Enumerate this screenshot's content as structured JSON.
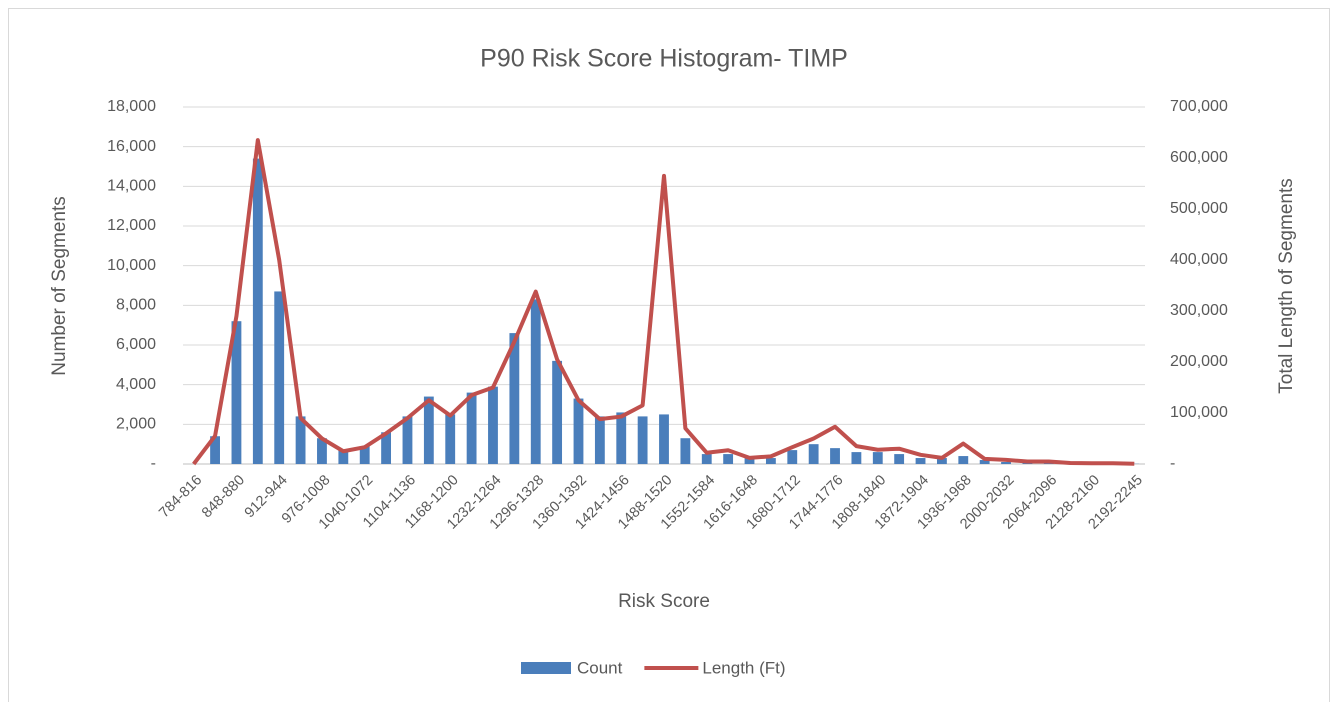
{
  "chart_data": {
    "type": "bar",
    "title": "P90 Risk Score Histogram- TIMP",
    "x_label": "Risk Score",
    "y_label": "Number of Segments",
    "y2_label": "Total Length of Segments",
    "categories": [
      "784-816",
      null,
      "848-880",
      null,
      "912-944",
      null,
      "976-1008",
      null,
      "1040-1072",
      null,
      "1104-1136",
      null,
      "1168-1200",
      null,
      "1232-1264",
      null,
      "1296-1328",
      null,
      "1360-1392",
      null,
      "1424-1456",
      null,
      "1488-1520",
      null,
      "1552-1584",
      null,
      "1616-1648",
      null,
      "1680-1712",
      null,
      "1744-1776",
      null,
      "1808-1840",
      null,
      "1872-1904",
      null,
      "1936-1968",
      null,
      "2000-2032",
      null,
      "2064-2096",
      null,
      "2128-2160",
      null,
      "2192-2245"
    ],
    "series": [
      {
        "name": "Count",
        "type": "bar",
        "color": "#4a7ebb",
        "values": [
          0,
          1400,
          7200,
          15400,
          8700,
          2400,
          1300,
          700,
          900,
          1600,
          2400,
          3400,
          2500,
          3600,
          3900,
          6600,
          8300,
          5200,
          3300,
          2400,
          2600,
          2400,
          2500,
          1300,
          500,
          500,
          300,
          300,
          700,
          1000,
          800,
          600,
          600,
          500,
          300,
          300,
          400,
          200,
          100,
          80,
          50,
          40,
          20,
          20,
          10
        ]
      },
      {
        "name": "Length (Ft)",
        "type": "line",
        "color": "#c0504d",
        "axis": "y2",
        "values": [
          0,
          55000,
          290000,
          635000,
          400000,
          90000,
          50000,
          25000,
          33000,
          60000,
          90000,
          125000,
          95000,
          135000,
          150000,
          240000,
          338000,
          205000,
          125000,
          88000,
          93000,
          115000,
          565000,
          70000,
          22000,
          27000,
          12000,
          15000,
          33000,
          50000,
          73000,
          35000,
          28000,
          30000,
          18000,
          12000,
          40000,
          10000,
          8000,
          5000,
          5000,
          2000,
          1500,
          1500,
          500
        ]
      }
    ],
    "ylim": [
      0,
      18000
    ],
    "yticks": [
      {
        "value": 0,
        "label": "-"
      },
      {
        "value": 2000,
        "label": "2,000"
      },
      {
        "value": 4000,
        "label": "4,000"
      },
      {
        "value": 6000,
        "label": "6,000"
      },
      {
        "value": 8000,
        "label": "8,000"
      },
      {
        "value": 10000,
        "label": "10,000"
      },
      {
        "value": 12000,
        "label": "12,000"
      },
      {
        "value": 14000,
        "label": "14,000"
      },
      {
        "value": 16000,
        "label": "16,000"
      },
      {
        "value": 18000,
        "label": "18,000"
      }
    ],
    "y2lim": [
      0,
      700000
    ],
    "y2ticks": [
      {
        "value": 0,
        "label": "-"
      },
      {
        "value": 100000,
        "label": "100,000"
      },
      {
        "value": 200000,
        "label": "200,000"
      },
      {
        "value": 300000,
        "label": "300,000"
      },
      {
        "value": 400000,
        "label": "400,000"
      },
      {
        "value": 500000,
        "label": "500,000"
      },
      {
        "value": 600000,
        "label": "600,000"
      },
      {
        "value": 700000,
        "label": "700,000"
      }
    ],
    "grid": true,
    "legend": "bottom"
  }
}
